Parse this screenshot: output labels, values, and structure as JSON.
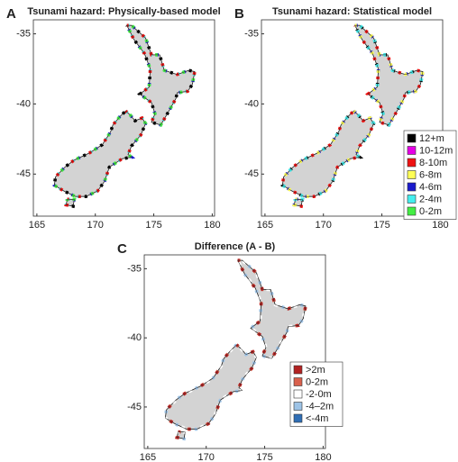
{
  "panels": [
    {
      "label": "A",
      "title": "Tsunami hazard: Physically-based model",
      "xlim": [
        164.7,
        180.2
      ],
      "ylim": [
        -48,
        -34
      ],
      "xticks": [
        165,
        170,
        175,
        180
      ],
      "yticks": [
        -35,
        -40,
        -45
      ]
    },
    {
      "label": "B",
      "title": "Tsunami hazard: Statistical model",
      "xlim": [
        164.7,
        180.2
      ],
      "ylim": [
        -48,
        -34
      ],
      "xticks": [
        165,
        170,
        175,
        180
      ],
      "yticks": [
        -35,
        -40,
        -45
      ],
      "legend": [
        {
          "label": "12+m",
          "color": "#000000"
        },
        {
          "label": "10-12m",
          "color": "#e600e6"
        },
        {
          "label": "8-10m",
          "color": "#ee1111"
        },
        {
          "label": "6-8m",
          "color": "#ffff55"
        },
        {
          "label": "4-6m",
          "color": "#1a1acc"
        },
        {
          "label": "2-4m",
          "color": "#44eeee"
        },
        {
          "label": "0-2m",
          "color": "#44ee44"
        }
      ]
    },
    {
      "label": "C",
      "title": "Difference (A - B)",
      "xlim": [
        164.7,
        180.2
      ],
      "ylim": [
        -48,
        -34
      ],
      "xticks": [
        165,
        170,
        175,
        180
      ],
      "yticks": [
        -35,
        -40,
        -45
      ],
      "legend": [
        {
          "label": ">2m",
          "color": "#b22222"
        },
        {
          "label": "0-2m",
          "color": "#d9604c"
        },
        {
          "label": "-2-0m",
          "color": "#ffffff"
        },
        {
          "label": "-4–2m",
          "color": "#9dc3e6"
        },
        {
          "label": "<-4m",
          "color": "#2f6eb5"
        }
      ]
    }
  ]
}
